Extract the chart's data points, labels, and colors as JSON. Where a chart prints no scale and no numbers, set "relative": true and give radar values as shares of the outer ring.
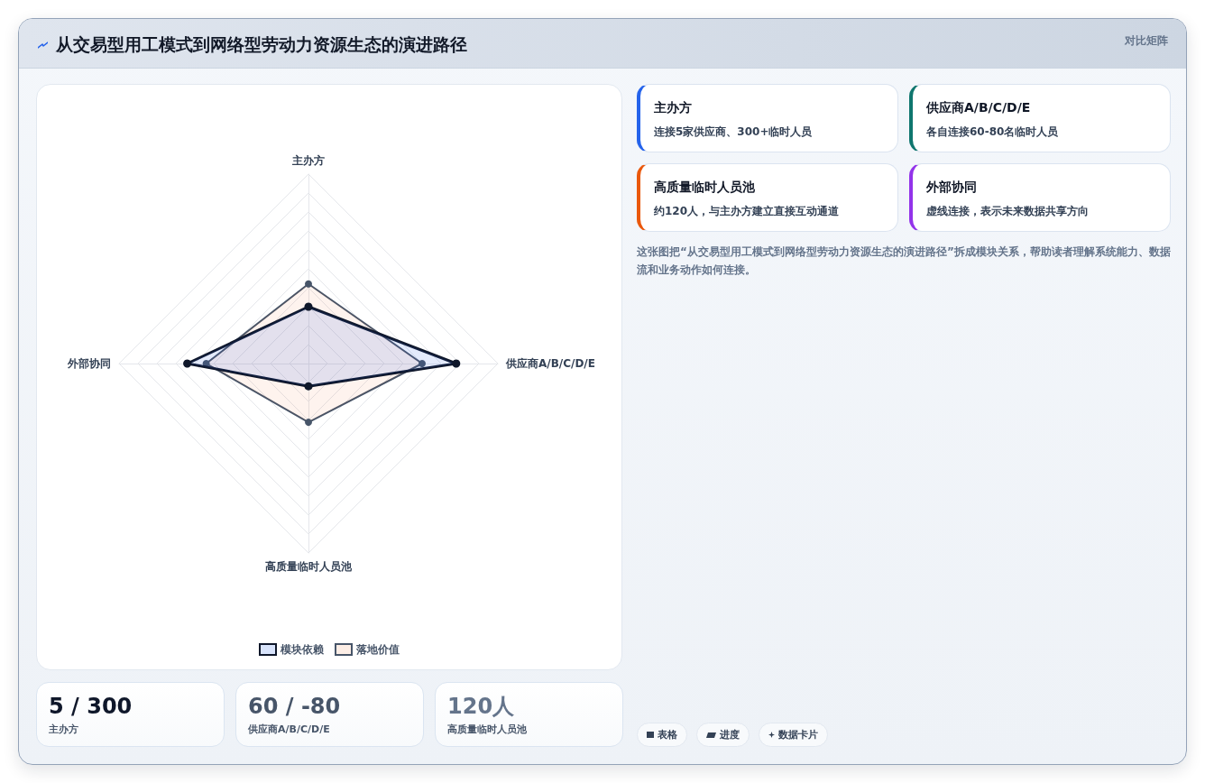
{
  "chart_data": {
    "type": "radar",
    "title": "从交易型用工模式到网络型劳动力资源生态的演进路径",
    "categories": [
      "主办方",
      "供应商A/B/C/D/E",
      "高质量临时人员池",
      "外部协同"
    ],
    "relative": true,
    "series": [
      {
        "name": "模块依赖",
        "color": "#0f172a",
        "values": [
          0.3,
          0.78,
          0.12,
          0.64
        ]
      },
      {
        "name": "落地价值",
        "color": "#475569",
        "values": [
          0.42,
          0.6,
          0.31,
          0.54
        ]
      }
    ],
    "marker": "circle",
    "line_style": "solid",
    "grid": true,
    "legend": "bottom",
    "annotations": [
      "对比矩阵",
      "主办方",
      "连接5家供应商、300+临时人员",
      "供应商A/B/C/D/E",
      "各自连接60-80名临时人员",
      "高质量临时人员池",
      "约120人，与主办方建立直接互动通道",
      "外部协同",
      "虚线连接，表示未来数据共享方向",
      "这张图把“从交易型用工模式到网络型劳动力资源生态的演进路径”拆成模块关系，帮助读者理解系统能力、数据流和业务动作如何连接。",
      "5 / 300",
      "主办方",
      "60 / -80",
      "供应商A/B/C/D/E",
      "120人",
      "高质量临时人员池",
      "表格",
      "进度",
      "数据卡片"
    ]
  }
}
